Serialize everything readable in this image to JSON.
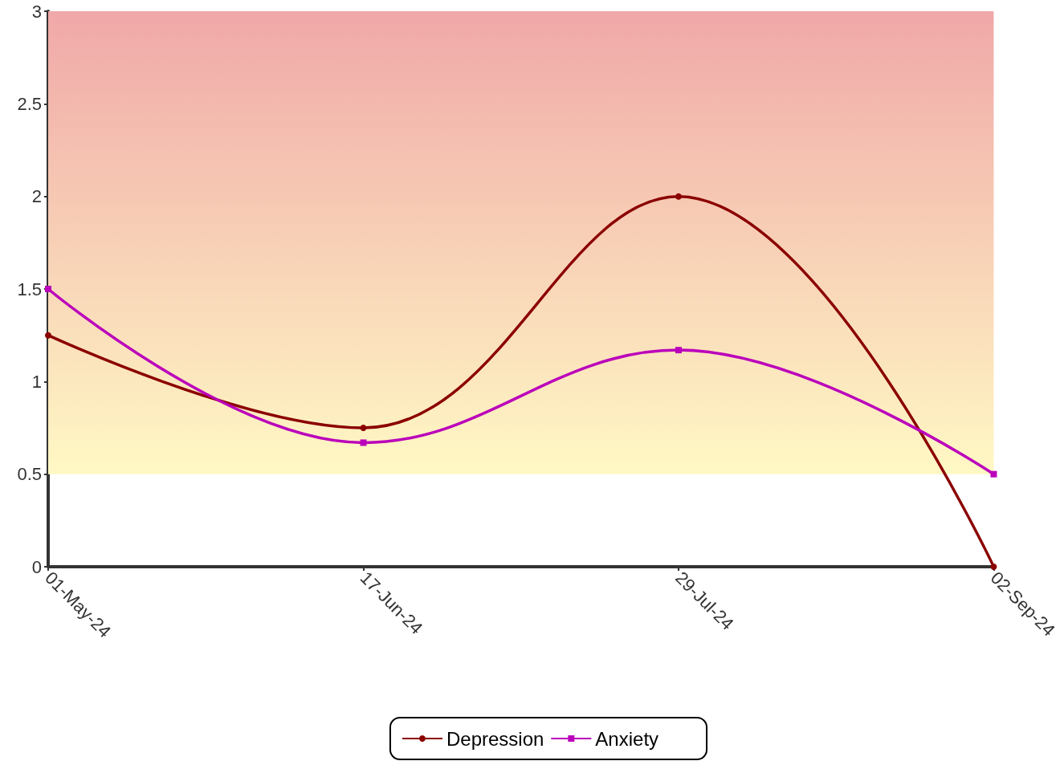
{
  "chart_data": {
    "type": "line",
    "categories": [
      "01-May-24",
      "17-Jun-24",
      "29-Jul-24",
      "02-Sep-24"
    ],
    "series": [
      {
        "name": "Depression",
        "color": "#8b0000",
        "marker": "circle",
        "values": [
          1.25,
          0.75,
          2,
          0
        ]
      },
      {
        "name": "Anxiety",
        "color": "#bb00bb",
        "marker": "square",
        "values": [
          1.5,
          0.67,
          1.17,
          0.5
        ]
      }
    ],
    "ylim": [
      0,
      3
    ],
    "yticks": [
      0,
      0.5,
      1,
      1.5,
      2,
      2.5,
      3
    ],
    "bands": [
      {
        "axis": "y",
        "from": 0.5,
        "to": 3,
        "color": "#f0a8a8"
      }
    ],
    "grid": false,
    "legend": "bottom",
    "line_style": "solid"
  }
}
